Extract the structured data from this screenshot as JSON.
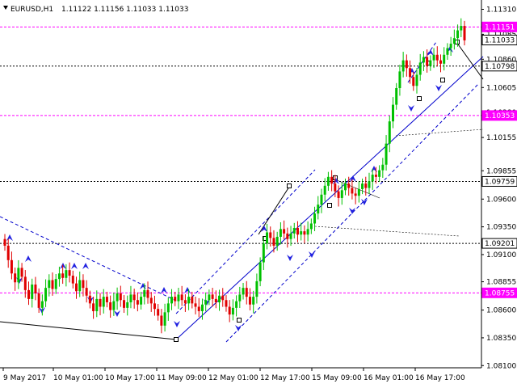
{
  "header": {
    "symbol": "EURUSD,H1",
    "ohlc": "1.11122 1.11156 1.11033 1.11033"
  },
  "colors": {
    "bull": "#00c000",
    "bear": "#e00000",
    "magenta": "#ff00ff",
    "marker": "#2020e0",
    "line": "#0000cc"
  },
  "chart_data": {
    "type": "candlestick",
    "symbol": "EURUSD",
    "timeframe": "H1",
    "ylim": [
      1.0808,
      1.1135
    ],
    "y_ticks": [
      "1.11310",
      "1.11085",
      "1.10860",
      "1.10605",
      "1.10380",
      "1.10155",
      "1.09855",
      "1.09600",
      "1.09350",
      "1.09100",
      "1.08855",
      "1.08600",
      "1.08350",
      "1.08100"
    ],
    "x_ticks": [
      "9 May 2017",
      "10 May 01:00",
      "10 May 17:00",
      "11 May 09:00",
      "12 May 01:00",
      "12 May 17:00",
      "15 May 09:00",
      "16 May 01:00",
      "16 May 17:00"
    ],
    "levels": [
      {
        "value": 1.11151,
        "label": "1.11151",
        "style": "magenta-dash",
        "tag": "magenta"
      },
      {
        "value": 1.11033,
        "label": "1.11033",
        "style": "none",
        "tag": "white"
      },
      {
        "value": 1.10798,
        "label": "1.10798",
        "style": "black-dash",
        "tag": "white"
      },
      {
        "value": 1.10353,
        "label": "1.10353",
        "style": "magenta-dash",
        "tag": "magenta"
      },
      {
        "value": 1.09759,
        "label": "1.09759",
        "style": "black-dash",
        "tag": "white"
      },
      {
        "value": 1.09201,
        "label": "1.09201",
        "style": "black-dash",
        "tag": "white"
      },
      {
        "value": 1.08755,
        "label": "1.08755",
        "style": "magenta-dash",
        "tag": "magenta"
      }
    ],
    "closes": [
      1.0918,
      1.0905,
      1.0893,
      1.0885,
      1.0898,
      1.089,
      1.0878,
      1.087,
      1.0883,
      1.0875,
      1.0862,
      1.0868,
      1.088,
      1.0887,
      1.0879,
      1.0888,
      1.0893,
      1.0889,
      1.0896,
      1.0891,
      1.0884,
      1.0877,
      1.0887,
      1.088,
      1.0873,
      1.0866,
      1.0859,
      1.087,
      1.0863,
      1.0872,
      1.0867,
      1.086,
      1.0868,
      1.0875,
      1.0869,
      1.0862,
      1.0867,
      1.0874,
      1.0869,
      1.0865,
      1.0872,
      1.0878,
      1.0871,
      1.0866,
      1.0861,
      1.0855,
      1.0846,
      1.0858,
      1.0866,
      1.0872,
      1.0868,
      1.0874,
      1.0869,
      1.0866,
      1.0872,
      1.0866,
      1.0863,
      1.0859,
      1.0865,
      1.0869,
      1.0874,
      1.087,
      1.0867,
      1.0873,
      1.0869,
      1.0863,
      1.0856,
      1.0862,
      1.0868,
      1.0874,
      1.088,
      1.0872,
      1.0865,
      1.0872,
      1.0886,
      1.0903,
      1.092,
      1.093,
      1.0925,
      1.0918,
      1.0926,
      1.0933,
      1.0929,
      1.0924,
      1.0929,
      1.0934,
      1.0928,
      1.0931,
      1.0928,
      1.0933,
      1.0938,
      1.0947,
      1.0955,
      1.0964,
      1.0972,
      1.098,
      1.0974,
      1.0967,
      1.0961,
      1.0968,
      1.0974,
      1.097,
      1.0965,
      1.0963,
      1.0969,
      1.0974,
      1.097,
      1.0976,
      1.0982,
      1.098,
      1.0986,
      1.0991,
      1.101,
      1.103,
      1.1045,
      1.106,
      1.1075,
      1.1085,
      1.1078,
      1.107,
      1.1062,
      1.1072,
      1.1083,
      1.1088,
      1.108,
      1.1085,
      1.109,
      1.1085,
      1.1082,
      1.109,
      1.1096,
      1.11,
      1.1105,
      1.1112,
      1.1116,
      1.1103
    ]
  }
}
